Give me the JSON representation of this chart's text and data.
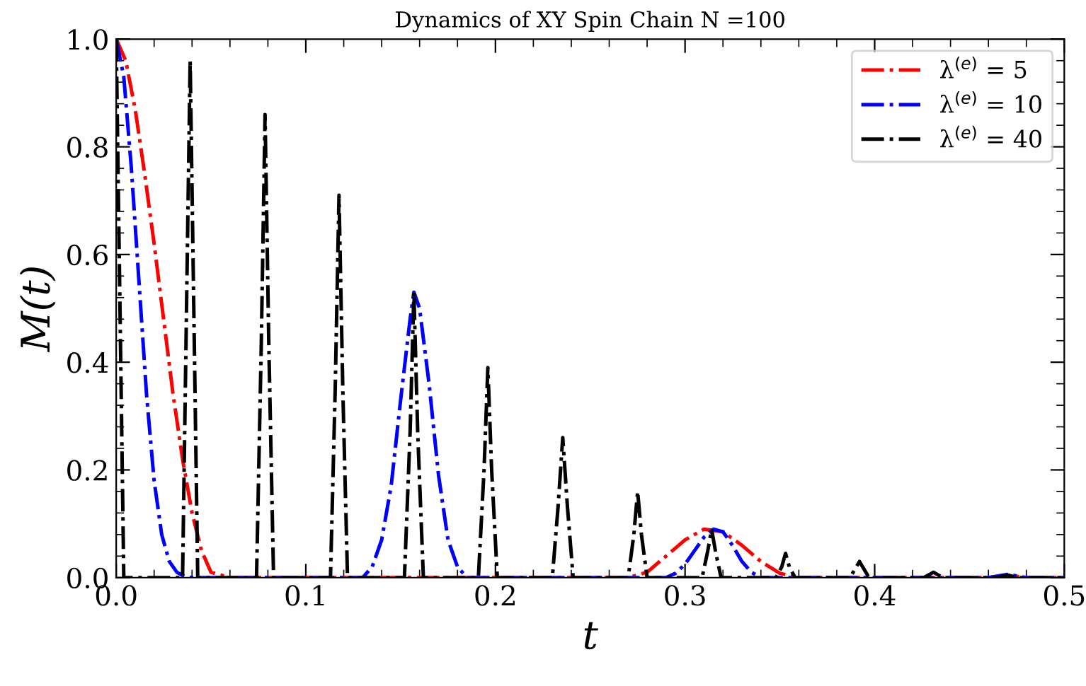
{
  "chart_data": {
    "type": "line",
    "title": "Dynamics of XY Spin Chain N =100",
    "xlabel": "t",
    "ylabel": "M(t)",
    "xlim": [
      0,
      0.5
    ],
    "ylim": [
      0,
      1
    ],
    "xticks": [
      {
        "value": 0,
        "label": "0.0"
      },
      0.1,
      0.2,
      0.3,
      0.4,
      0.5
    ],
    "yticks": [
      {
        "value": 0,
        "label": "0.0"
      },
      0.2,
      0.4,
      0.6,
      0.8,
      {
        "value": 1,
        "label": "1.0"
      }
    ],
    "legend": "top right",
    "grid": false,
    "line_style": "dashdot",
    "series": [
      {
        "name": "λ$^{(e)}$ = 5",
        "color": "#ff0000",
        "x": [
          0,
          0.005,
          0.01,
          0.015,
          0.02,
          0.025,
          0.03,
          0.035,
          0.04,
          0.045,
          0.05,
          0.06,
          0.27,
          0.28,
          0.29,
          0.3,
          0.31,
          0.32,
          0.33,
          0.34,
          0.35,
          0.36,
          0.46,
          0.47,
          0.48,
          0.5
        ],
        "values": [
          1,
          0.96,
          0.87,
          0.75,
          0.62,
          0.48,
          0.34,
          0.22,
          0.12,
          0.05,
          0.01,
          0,
          0,
          0.01,
          0.04,
          0.07,
          0.09,
          0.085,
          0.06,
          0.03,
          0.008,
          0,
          0,
          0.004,
          0,
          0
        ]
      },
      {
        "name": "λ$^{(e)}$ = 10",
        "color": "#0000ff",
        "x": [
          0,
          0.004,
          0.008,
          0.012,
          0.016,
          0.02,
          0.024,
          0.028,
          0.032,
          0.036,
          0.04,
          0.13,
          0.135,
          0.14,
          0.145,
          0.15,
          0.155,
          0.157,
          0.16,
          0.165,
          0.17,
          0.175,
          0.18,
          0.185,
          0.29,
          0.295,
          0.3,
          0.305,
          0.31,
          0.315,
          0.32,
          0.325,
          0.33,
          0.335,
          0.34,
          0.46,
          0.47,
          0.48,
          0.5
        ],
        "values": [
          1,
          0.93,
          0.76,
          0.55,
          0.34,
          0.18,
          0.08,
          0.03,
          0.01,
          0.002,
          0,
          0,
          0.02,
          0.07,
          0.17,
          0.33,
          0.48,
          0.53,
          0.5,
          0.36,
          0.19,
          0.07,
          0.02,
          0,
          0,
          0.008,
          0.025,
          0.05,
          0.075,
          0.09,
          0.085,
          0.06,
          0.03,
          0.01,
          0,
          0,
          0.006,
          0,
          0
        ]
      },
      {
        "name": "λ$^{(e)}$ = 40",
        "color": "#000000",
        "x": [
          0,
          0.002,
          0.004,
          0.035,
          0.037,
          0.039,
          0.041,
          0.043,
          0.074,
          0.0765,
          0.0785,
          0.0805,
          0.083,
          0.113,
          0.1155,
          0.1175,
          0.1195,
          0.122,
          0.152,
          0.155,
          0.157,
          0.159,
          0.162,
          0.191,
          0.194,
          0.196,
          0.198,
          0.201,
          0.23,
          0.233,
          0.2355,
          0.238,
          0.241,
          0.27,
          0.273,
          0.275,
          0.277,
          0.28,
          0.309,
          0.312,
          0.314,
          0.316,
          0.319,
          0.348,
          0.351,
          0.353,
          0.355,
          0.358,
          0.387,
          0.392,
          0.397,
          0.426,
          0.431,
          0.436,
          0.465,
          0.47,
          0.475,
          0.5
        ],
        "values": [
          1,
          0.5,
          0,
          0,
          0.48,
          0.96,
          0.48,
          0,
          0,
          0.43,
          0.86,
          0.43,
          0,
          0,
          0.35,
          0.71,
          0.35,
          0,
          0,
          0.27,
          0.53,
          0.27,
          0,
          0,
          0.2,
          0.39,
          0.2,
          0,
          0,
          0.13,
          0.26,
          0.13,
          0,
          0,
          0.08,
          0.16,
          0.08,
          0,
          0,
          0.05,
          0.09,
          0.05,
          0,
          0,
          0.02,
          0.045,
          0.02,
          0,
          0,
          0.03,
          0,
          0,
          0.01,
          0,
          0,
          0.005,
          0,
          0
        ]
      }
    ]
  }
}
